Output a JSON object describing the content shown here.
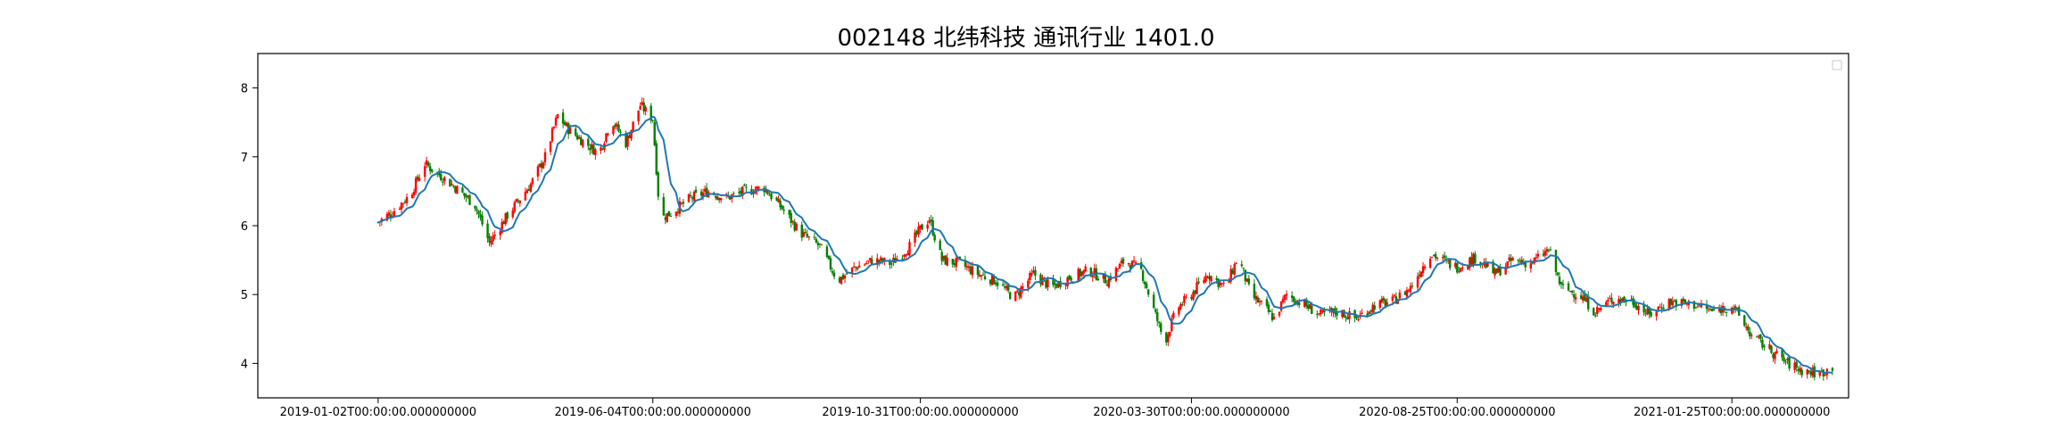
{
  "chart_data": {
    "type": "candlestick",
    "title": "002148 北纬科技 通讯行业 1401.0",
    "xlabel": "",
    "ylabel": "",
    "ylim": [
      3.5,
      8.5
    ],
    "y_ticks": [
      4,
      5,
      6,
      7,
      8
    ],
    "x_ticks": [
      "2019-01-02T00:00:00.000000000",
      "2019-06-04T00:00:00.000000000",
      "2019-10-31T00:00:00.000000000",
      "2020-03-30T00:00:00.000000000",
      "2020-08-25T00:00:00.000000000",
      "2021-01-25T00:00:00.000000000"
    ],
    "x_range": [
      "2018-10-27",
      "2021-03-31"
    ],
    "legend": "top-right (empty)",
    "grid": false,
    "colors": {
      "up": "#ff0000",
      "down": "#008000",
      "moving_average": "#1f77b4"
    },
    "price_path": [
      [
        "2019-01-02",
        6.05
      ],
      [
        "2019-01-10",
        6.2
      ],
      [
        "2019-01-20",
        6.45
      ],
      [
        "2019-01-28",
        6.9
      ],
      [
        "2019-02-12",
        6.6
      ],
      [
        "2019-02-25",
        6.3
      ],
      [
        "2019-03-05",
        5.75
      ],
      [
        "2019-03-15",
        6.15
      ],
      [
        "2019-03-28",
        6.6
      ],
      [
        "2019-04-05",
        7.0
      ],
      [
        "2019-04-12",
        7.6
      ],
      [
        "2019-04-18",
        7.4
      ],
      [
        "2019-04-25",
        7.25
      ],
      [
        "2019-05-05",
        7.05
      ],
      [
        "2019-05-12",
        7.55
      ],
      [
        "2019-05-20",
        7.2
      ],
      [
        "2019-05-28",
        7.75
      ],
      [
        "2019-06-04",
        7.55
      ],
      [
        "2019-06-08",
        6.1
      ],
      [
        "2019-06-15",
        6.2
      ],
      [
        "2019-06-25",
        6.4
      ],
      [
        "2019-07-05",
        6.5
      ],
      [
        "2019-07-15",
        6.4
      ],
      [
        "2019-07-25",
        6.5
      ],
      [
        "2019-08-05",
        6.55
      ],
      [
        "2019-08-15",
        6.25
      ],
      [
        "2019-08-25",
        5.9
      ],
      [
        "2019-09-05",
        5.7
      ],
      [
        "2019-09-15",
        5.2
      ],
      [
        "2019-09-25",
        5.4
      ],
      [
        "2019-10-05",
        5.5
      ],
      [
        "2019-10-15",
        5.45
      ],
      [
        "2019-10-25",
        5.7
      ],
      [
        "2019-10-31",
        5.95
      ],
      [
        "2019-11-05",
        6.1
      ],
      [
        "2019-11-12",
        5.5
      ],
      [
        "2019-11-22",
        5.45
      ],
      [
        "2019-12-02",
        5.3
      ],
      [
        "2019-12-12",
        5.2
      ],
      [
        "2019-12-22",
        4.95
      ],
      [
        "2020-01-02",
        5.3
      ],
      [
        "2020-01-12",
        5.1
      ],
      [
        "2020-01-22",
        5.25
      ],
      [
        "2020-02-02",
        5.35
      ],
      [
        "2020-02-12",
        5.2
      ],
      [
        "2020-02-22",
        5.5
      ],
      [
        "2020-03-02",
        5.35
      ],
      [
        "2020-03-10",
        4.7
      ],
      [
        "2020-03-15",
        4.3
      ],
      [
        "2020-03-22",
        4.8
      ],
      [
        "2020-03-30",
        5.0
      ],
      [
        "2020-04-08",
        5.3
      ],
      [
        "2020-04-18",
        5.1
      ],
      [
        "2020-04-25",
        5.55
      ],
      [
        "2020-05-02",
        5.0
      ],
      [
        "2020-05-10",
        4.8
      ],
      [
        "2020-05-15",
        4.65
      ],
      [
        "2020-05-22",
        5.0
      ],
      [
        "2020-06-01",
        4.85
      ],
      [
        "2020-06-10",
        4.7
      ],
      [
        "2020-06-20",
        4.75
      ],
      [
        "2020-06-30",
        4.65
      ],
      [
        "2020-07-10",
        4.85
      ],
      [
        "2020-07-20",
        4.9
      ],
      [
        "2020-07-30",
        5.1
      ],
      [
        "2020-08-10",
        5.6
      ],
      [
        "2020-08-20",
        5.45
      ],
      [
        "2020-08-25",
        5.4
      ],
      [
        "2020-09-05",
        5.55
      ],
      [
        "2020-09-15",
        5.3
      ],
      [
        "2020-09-25",
        5.5
      ],
      [
        "2020-10-05",
        5.45
      ],
      [
        "2020-10-15",
        5.65
      ],
      [
        "2020-10-22",
        5.1
      ],
      [
        "2020-11-01",
        5.0
      ],
      [
        "2020-11-10",
        4.75
      ],
      [
        "2020-11-20",
        4.95
      ],
      [
        "2020-12-01",
        4.9
      ],
      [
        "2020-12-10",
        4.7
      ],
      [
        "2020-12-20",
        4.9
      ],
      [
        "2021-01-05",
        4.85
      ],
      [
        "2021-01-15",
        4.75
      ],
      [
        "2021-01-25",
        4.85
      ],
      [
        "2021-02-05",
        4.4
      ],
      [
        "2021-02-15",
        4.2
      ],
      [
        "2021-02-25",
        4.0
      ],
      [
        "2021-03-05",
        3.9
      ],
      [
        "2021-03-15",
        3.85
      ],
      [
        "2021-03-22",
        3.95
      ]
    ]
  }
}
